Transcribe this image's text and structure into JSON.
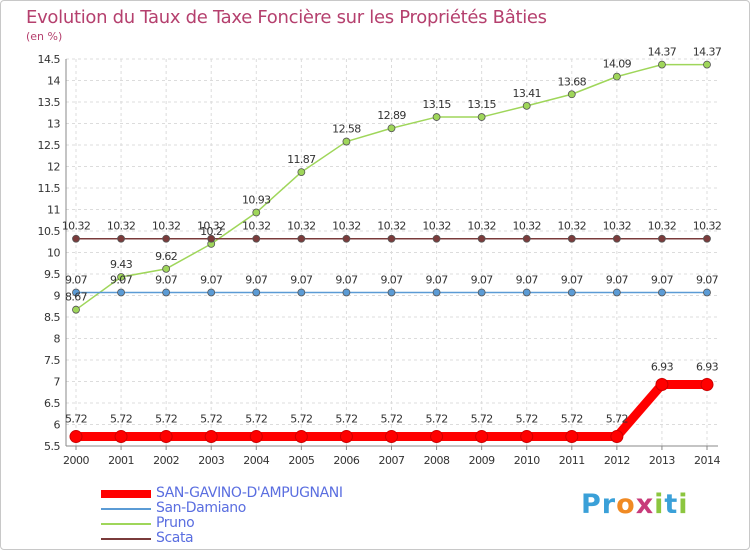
{
  "title": "Evolution du Taux de Taxe Foncière sur les Propriétés Bâties",
  "unit_label": "(en %)",
  "logo": {
    "letters": [
      "P",
      "r",
      "o",
      "x",
      "i",
      "t",
      "i"
    ],
    "colors": [
      "#3aa0d8",
      "#3aa0d8",
      "#f08a24",
      "#c83b7a",
      "#8cc63f",
      "#3aa0d8",
      "#8cc63f"
    ]
  },
  "chart_data": {
    "type": "line",
    "title": "Evolution du Taux de Taxe Foncière sur les Propriétés Bâties",
    "xlabel": "",
    "ylabel": "(en %)",
    "ylim": [
      5.5,
      14.5
    ],
    "yticks": [
      "5.5",
      "6",
      "6.5",
      "7",
      "7.5",
      "8",
      "8.5",
      "9",
      "9.5",
      "10",
      "10.5",
      "11",
      "11.5",
      "12",
      "12.5",
      "13",
      "13.5",
      "14",
      "14.5"
    ],
    "x": [
      "2000",
      "2001",
      "2002",
      "2003",
      "2004",
      "2005",
      "2006",
      "2007",
      "2008",
      "2009",
      "2010",
      "2011",
      "2012",
      "2013",
      "2014"
    ],
    "grid": true,
    "series": [
      {
        "name": "SAN-GAVINO-D'AMPUGNANI",
        "color": "#ff0000",
        "values": [
          5.72,
          5.72,
          5.72,
          5.72,
          5.72,
          5.72,
          5.72,
          5.72,
          5.72,
          5.72,
          5.72,
          5.72,
          5.72,
          6.93,
          6.93
        ],
        "labels": [
          "5.72",
          "5.72",
          "5.72",
          "5.72",
          "5.72",
          "5.72",
          "5.72",
          "5.72",
          "5.72",
          "5.72",
          "5.72",
          "5.72",
          "5.72",
          "6.93",
          "6.93"
        ]
      },
      {
        "name": "San-Damiano",
        "color": "#5b9bd5",
        "values": [
          9.07,
          9.07,
          9.07,
          9.07,
          9.07,
          9.07,
          9.07,
          9.07,
          9.07,
          9.07,
          9.07,
          9.07,
          9.07,
          9.07,
          9.07
        ],
        "labels": [
          "9.07",
          "9.07",
          "9.07",
          "9.07",
          "9.07",
          "9.07",
          "9.07",
          "9.07",
          "9.07",
          "9.07",
          "9.07",
          "9.07",
          "9.07",
          "9.07",
          "9.07"
        ]
      },
      {
        "name": "Pruno",
        "color": "#9fd65a",
        "values": [
          8.67,
          9.43,
          9.62,
          10.2,
          10.93,
          11.87,
          12.58,
          12.89,
          13.15,
          13.15,
          13.41,
          13.68,
          14.09,
          14.37,
          14.37
        ],
        "labels": [
          "8.67",
          "9.43",
          "9.62",
          "10.2",
          "10.93",
          "11.87",
          "12.58",
          "12.89",
          "13.15",
          "13.15",
          "13.41",
          "13.68",
          "14.09",
          "14.37",
          "14.37"
        ]
      },
      {
        "name": "Scata",
        "color": "#7a3b3b",
        "values": [
          10.32,
          10.32,
          10.32,
          10.32,
          10.32,
          10.32,
          10.32,
          10.32,
          10.32,
          10.32,
          10.32,
          10.32,
          10.32,
          10.32,
          10.32
        ],
        "labels": [
          "10.32",
          "10.32",
          "10.32",
          "10.32",
          "10.32",
          "10.32",
          "10.32",
          "10.32",
          "10.32",
          "10.32",
          "10.32",
          "10.32",
          "10.32",
          "10.32",
          "10.32"
        ]
      }
    ],
    "legend": "bottom-left"
  }
}
